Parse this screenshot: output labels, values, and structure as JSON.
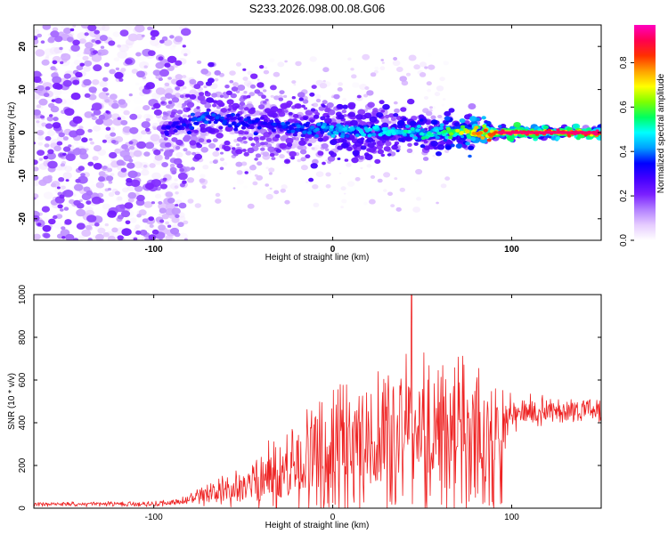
{
  "title": "S233.2026.098.00.08.G06",
  "colors": {
    "snr_line": "#ee2222",
    "colormap": [
      "#ffffff",
      "#e6ccff",
      "#b27fff",
      "#7a1fff",
      "#4400ff",
      "#0000ff",
      "#00a0ff",
      "#00ffff",
      "#00ff60",
      "#7fff00",
      "#ffff00",
      "#ffa000",
      "#ff3000",
      "#ff0050",
      "#ff00c0"
    ]
  },
  "chart_data": [
    {
      "type": "heatmap",
      "name": "spectrogram",
      "xlabel": "Height of straight line (km)",
      "ylabel": "Frequency (Hz)",
      "xlim": [
        -167,
        150
      ],
      "ylim": [
        -25,
        25
      ],
      "x_ticks": [
        -100,
        0,
        100
      ],
      "y_ticks": [
        -20,
        -10,
        0,
        10,
        20
      ],
      "colorbar": {
        "label": "Normalized spectral amplitude",
        "range": [
          0,
          0.97
        ],
        "ticks": [
          0.0,
          0.2,
          0.4,
          0.6,
          0.8
        ]
      },
      "ridge": {
        "description_points_x": [
          -95,
          -80,
          -70,
          -60,
          -40,
          -20,
          0,
          20,
          40,
          60,
          80,
          95,
          150
        ],
        "center_freq_hz": [
          1,
          2,
          4,
          3,
          2,
          1,
          0.5,
          0.3,
          0.2,
          0.1,
          0,
          0,
          0
        ],
        "peak_amplitude": [
          0.3,
          0.35,
          0.4,
          0.35,
          0.35,
          0.4,
          0.45,
          0.45,
          0.5,
          0.55,
          0.75,
          0.9,
          0.92
        ]
      }
    },
    {
      "type": "line",
      "name": "snr",
      "xlabel": "Height of straight line (km)",
      "ylabel": "SNR (10 * v/v)",
      "xlim": [
        -167,
        150
      ],
      "ylim": [
        0,
        1000
      ],
      "x_ticks": [
        -100,
        0,
        100
      ],
      "y_ticks": [
        0,
        200,
        400,
        600,
        800,
        1000
      ],
      "envelope": {
        "x": [
          -167,
          -100,
          -85,
          -75,
          -60,
          -50,
          -40,
          -30,
          -20,
          -10,
          0,
          10,
          20,
          30,
          40,
          50,
          60,
          70,
          80,
          90,
          100,
          110,
          120,
          130,
          140,
          150
        ],
        "mean": [
          18,
          20,
          30,
          50,
          80,
          100,
          140,
          160,
          200,
          240,
          280,
          320,
          340,
          360,
          380,
          380,
          370,
          370,
          360,
          380,
          430,
          450,
          460,
          460,
          460,
          460
        ],
        "spread": [
          12,
          15,
          25,
          50,
          80,
          120,
          180,
          220,
          280,
          320,
          340,
          380,
          400,
          420,
          430,
          430,
          420,
          420,
          400,
          300,
          120,
          90,
          80,
          70,
          70,
          70
        ]
      },
      "max_value": 1000,
      "max_at_x": 44
    }
  ]
}
